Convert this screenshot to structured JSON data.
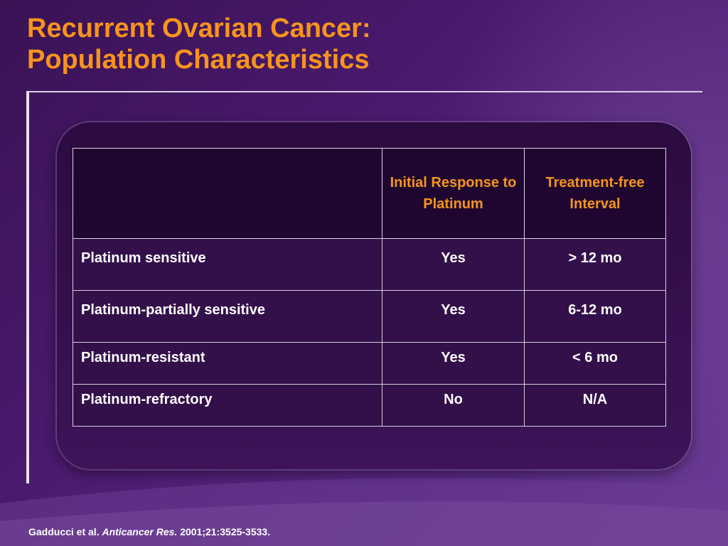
{
  "slide": {
    "title_line1": "Recurrent Ovarian Cancer:",
    "title_line2": "Population Characteristics"
  },
  "table": {
    "header": [
      "",
      "Initial Response to Platinum",
      "Treatment-free Interval"
    ],
    "rows": [
      [
        "Platinum sensitive",
        "Yes",
        "> 12 mo"
      ],
      [
        "Platinum-partially sensitive",
        "Yes",
        "6-12 mo"
      ],
      [
        "Platinum-resistant",
        "Yes",
        "< 6 mo"
      ],
      [
        "Platinum-refractory",
        "No",
        "N/A"
      ]
    ]
  },
  "citation": {
    "authors": "Gadducci et al.",
    "journal": "Anticancer Res.",
    "details": "2001;21:3525-3533."
  },
  "colors": {
    "title": "#f7941d",
    "header_text": "#f7941d",
    "background": "#4a1a6e"
  }
}
